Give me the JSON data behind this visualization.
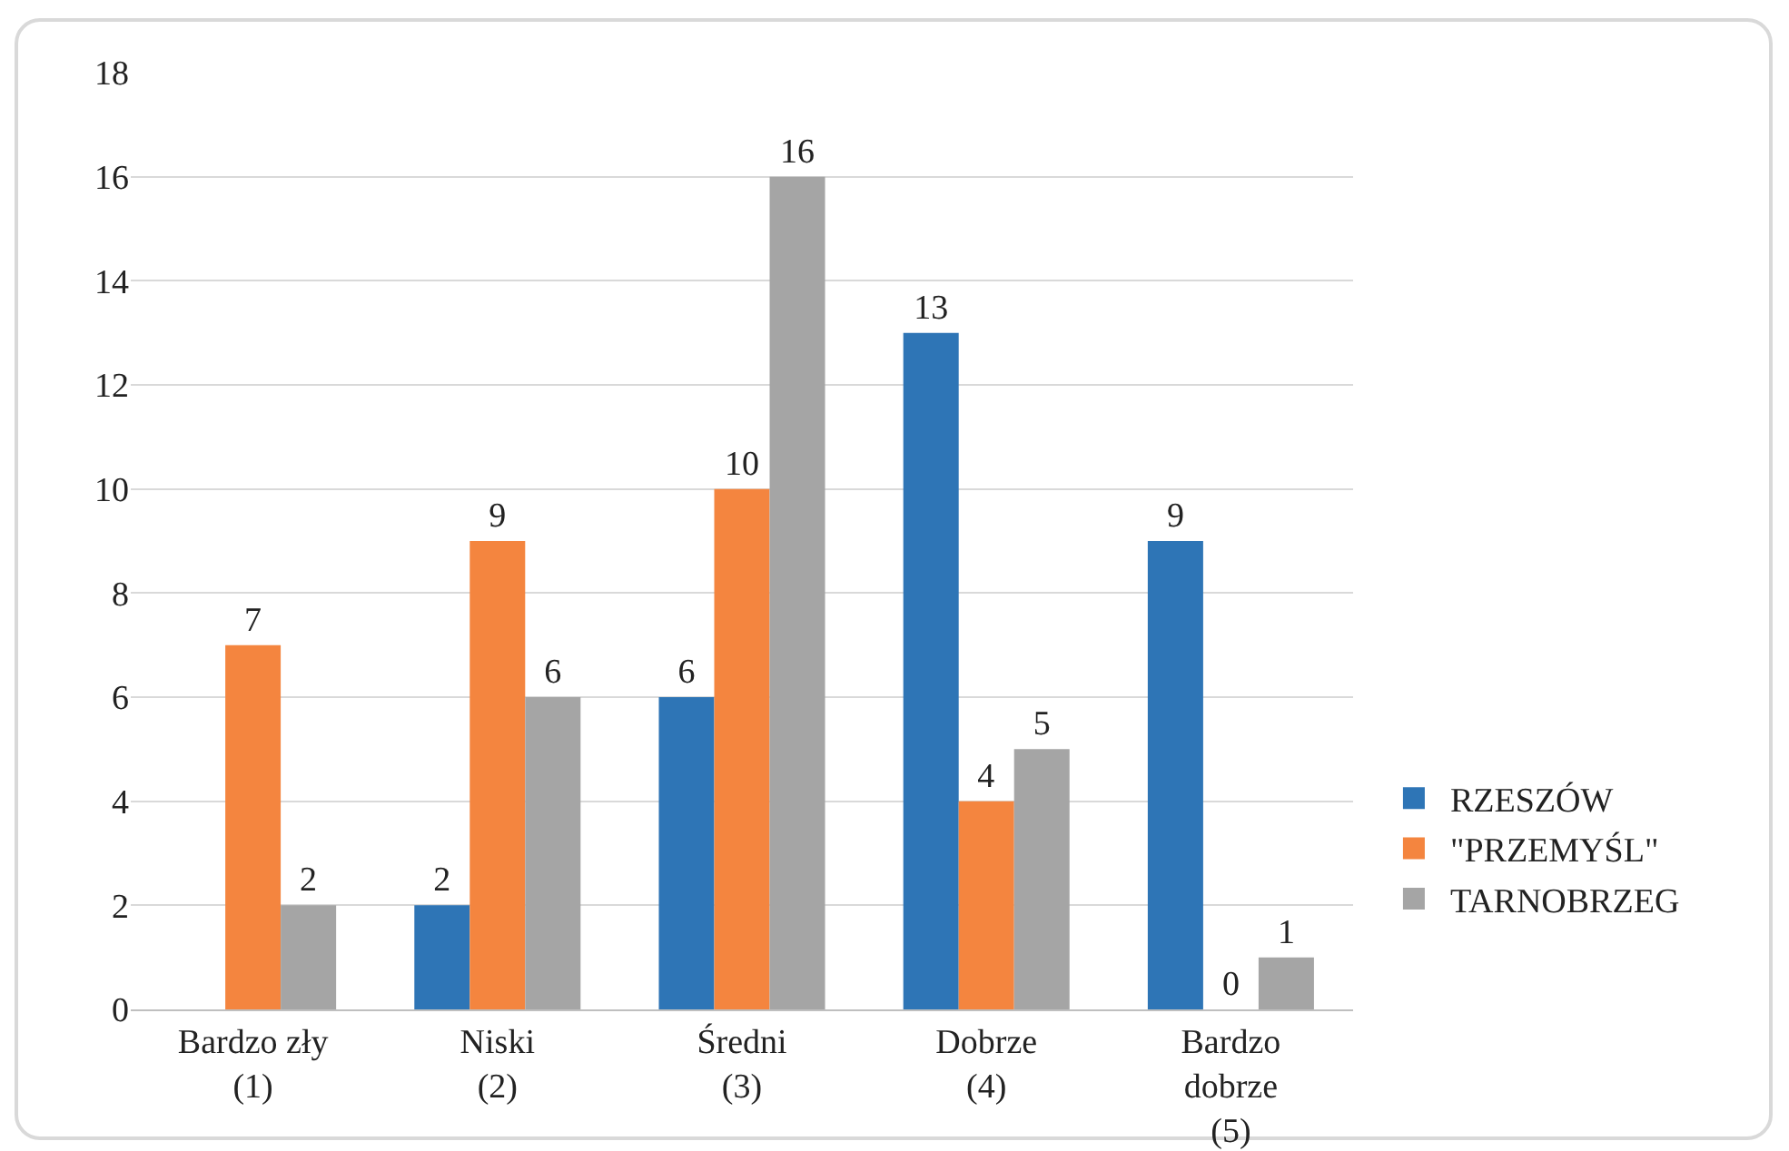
{
  "chart_data": {
    "type": "bar",
    "categories": [
      "Bardzo zły (1)",
      "Niski (2)",
      "Średni (3)",
      "Dobrze (4)",
      "Bardzo dobrze (5)"
    ],
    "series": [
      {
        "name": "RZESZÓW",
        "color": "#2e75b6",
        "values": [
          null,
          2,
          6,
          13,
          9
        ]
      },
      {
        "name": "\"PRZEMYŚL\"",
        "color": "#f4853f",
        "values": [
          7,
          9,
          10,
          4,
          0
        ]
      },
      {
        "name": "TARNOBRZEG",
        "color": "#a5a5a5",
        "values": [
          2,
          6,
          16,
          5,
          1
        ]
      }
    ],
    "ylim": [
      0,
      18
    ],
    "yticks": [
      0,
      2,
      4,
      6,
      8,
      10,
      12,
      14,
      16,
      18
    ],
    "grid": "y",
    "legend": "right",
    "data_labels": true
  }
}
